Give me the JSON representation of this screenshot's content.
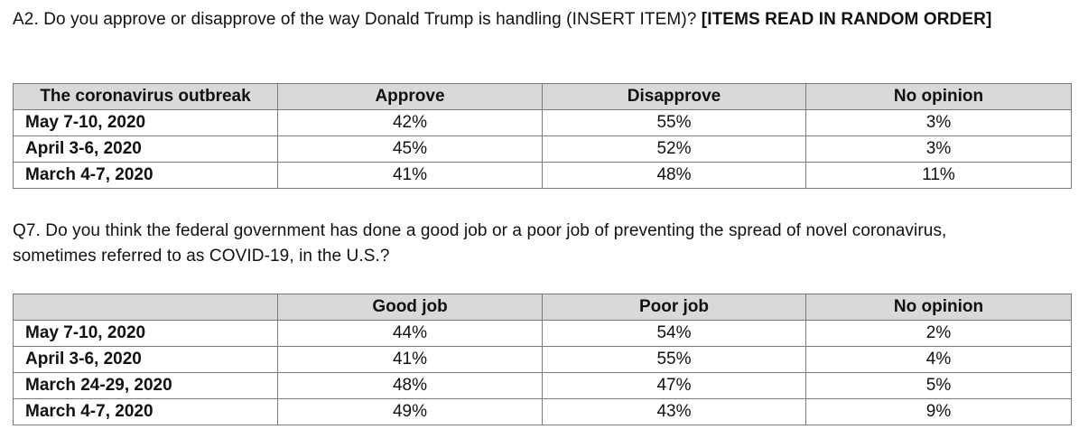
{
  "q1": {
    "text": "A2. Do you approve or disapprove of the way Donald Trump is handling (INSERT ITEM)? ",
    "bold_text": "[ITEMS READ IN RANDOM ORDER]",
    "table": {
      "headers": [
        "The coronavirus outbreak",
        "Approve",
        "Disapprove",
        "No opinion"
      ],
      "rows": [
        {
          "label": "May 7-10, 2020",
          "values": [
            "42%",
            "55%",
            "3%"
          ]
        },
        {
          "label": "April 3-6, 2020",
          "values": [
            "45%",
            "52%",
            "3%"
          ]
        },
        {
          "label": "March 4-7, 2020",
          "values": [
            "41%",
            "48%",
            "11%"
          ]
        }
      ]
    }
  },
  "q2": {
    "text": "Q7. Do you think the federal government has done a good job or a poor job of preventing the spread of novel coronavirus, sometimes referred to as COVID-19, in the U.S.?",
    "table": {
      "headers": [
        "",
        "Good job",
        "Poor job",
        "No opinion"
      ],
      "rows": [
        {
          "label": "May 7-10, 2020",
          "values": [
            "44%",
            "54%",
            "2%"
          ]
        },
        {
          "label": "April 3-6, 2020",
          "values": [
            "41%",
            "55%",
            "4%"
          ]
        },
        {
          "label": "March 24-29, 2020",
          "values": [
            "48%",
            "47%",
            "5%"
          ]
        },
        {
          "label": "March 4-7, 2020",
          "values": [
            "49%",
            "43%",
            "9%"
          ]
        }
      ]
    }
  }
}
